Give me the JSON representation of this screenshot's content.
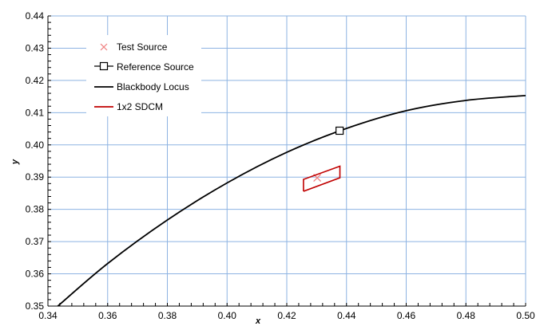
{
  "chart_data": {
    "type": "line",
    "title": "",
    "xlabel": "x",
    "ylabel": "y",
    "xlim": [
      0.34,
      0.5
    ],
    "ylim": [
      0.35,
      0.44
    ],
    "x_ticks": [
      "0.34",
      "0.36",
      "0.38",
      "0.40",
      "0.42",
      "0.44",
      "0.46",
      "0.48",
      "0.50"
    ],
    "y_ticks": [
      "0.35",
      "0.36",
      "0.37",
      "0.38",
      "0.39",
      "0.40",
      "0.41",
      "0.42",
      "0.43",
      "0.44"
    ],
    "grid": true,
    "legend_position": "top-left",
    "legend": [
      {
        "label": "Test Source",
        "marker": "x",
        "color": "#f08080"
      },
      {
        "label": "Reference Source",
        "marker": "square",
        "color": "#000000"
      },
      {
        "label": "Blackbody Locus",
        "marker": "line",
        "color": "#000000"
      },
      {
        "label": "1x2 SDCM",
        "marker": "line",
        "color": "#c00000"
      }
    ],
    "series": [
      {
        "name": "Blackbody Locus",
        "color": "#000000",
        "points": [
          [
            0.3433,
            0.35
          ],
          [
            0.36,
            0.3632
          ],
          [
            0.38,
            0.3767
          ],
          [
            0.4,
            0.3882
          ],
          [
            0.42,
            0.3977
          ],
          [
            0.44,
            0.4051
          ],
          [
            0.46,
            0.4106
          ],
          [
            0.48,
            0.4138
          ],
          [
            0.5,
            0.4153
          ]
        ]
      },
      {
        "name": "Reference Source",
        "color": "#000000",
        "points": [
          [
            0.4377,
            0.4044
          ]
        ]
      },
      {
        "name": "Test Source",
        "color": "#f08080",
        "points": [
          [
            0.4302,
            0.3898
          ]
        ]
      },
      {
        "name": "1x2 SDCM",
        "color": "#c00000",
        "points": [
          [
            0.4256,
            0.3856
          ],
          [
            0.4378,
            0.3898
          ],
          [
            0.4378,
            0.3934
          ],
          [
            0.4256,
            0.3893
          ],
          [
            0.4256,
            0.3856
          ]
        ]
      }
    ]
  }
}
